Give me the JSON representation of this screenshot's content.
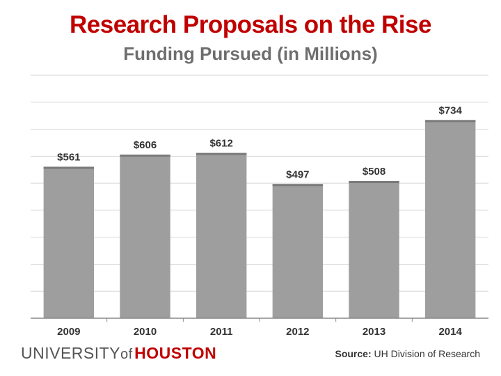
{
  "chart_data": {
    "type": "bar",
    "title": "Research Proposals on the Rise",
    "subtitle": "Funding Pursued (in Millions)",
    "categories": [
      "2009",
      "2010",
      "2011",
      "2012",
      "2013",
      "2014"
    ],
    "values": [
      561,
      606,
      612,
      497,
      508,
      734
    ],
    "data_labels": [
      "$561",
      "$606",
      "$612",
      "$497",
      "$508",
      "$734"
    ],
    "xlabel": "",
    "ylabel": "",
    "ylim": [
      0,
      900
    ],
    "grid": true,
    "legend": "none",
    "colors": {
      "bar": "#9e9e9e",
      "bar_top": "#7a7a7a",
      "grid": "#d6d6d6",
      "axis": "#888888",
      "label": "#333333"
    }
  },
  "footer": {
    "logo_university": "UNIVERSITY",
    "logo_of": "of",
    "logo_houston": "HOUSTON",
    "source_label": "Source:",
    "source_text": "UH Division of Research"
  }
}
